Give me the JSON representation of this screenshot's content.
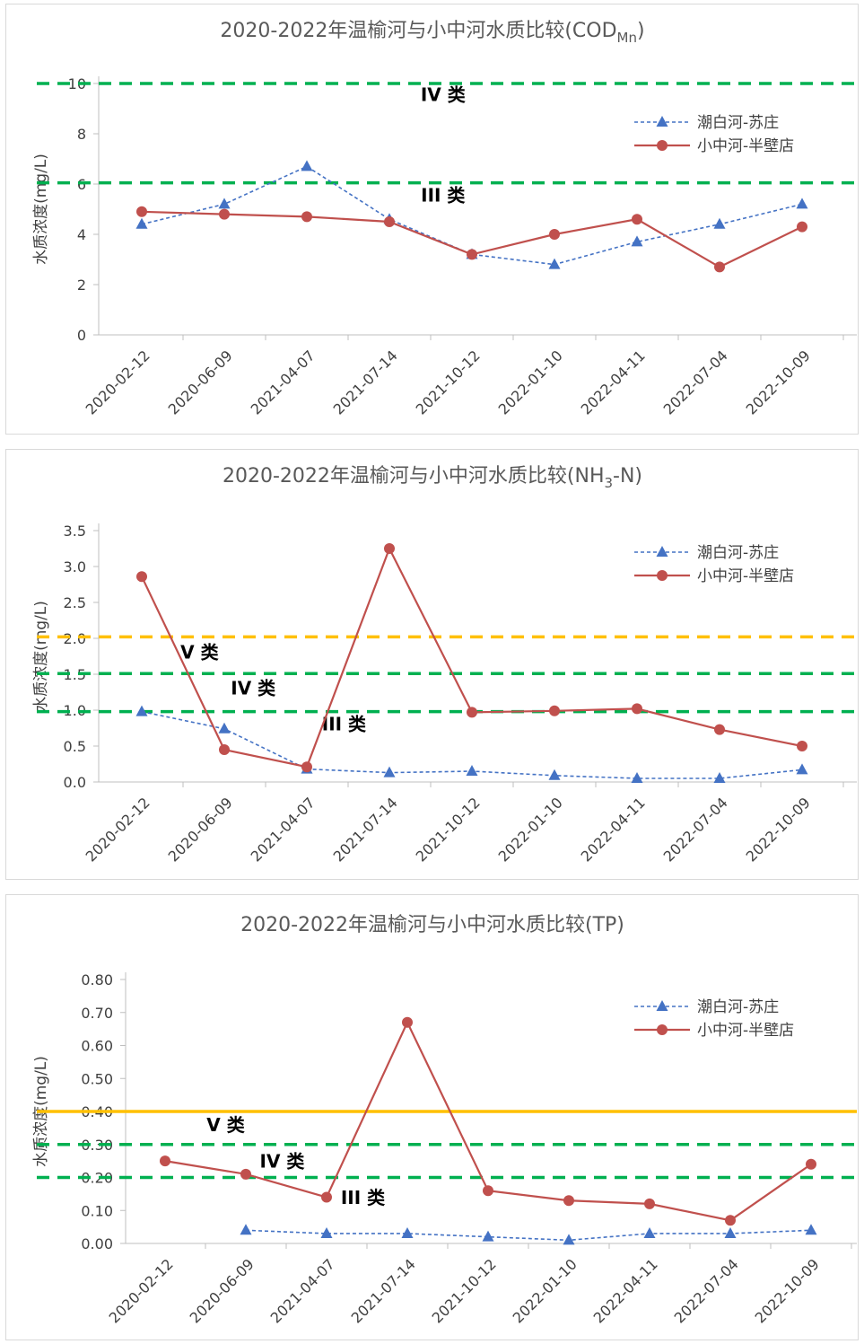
{
  "chart_data": [
    {
      "type": "line",
      "title": "2020-2022年温榆河与小中河水质比较(COD",
      "title_sub": "Mn",
      "title_end": ")",
      "ylabel": "水质浓度(mg/L)",
      "ylim": [
        0,
        10
      ],
      "yticks": [
        "0",
        "2",
        "4",
        "6",
        "8",
        "10"
      ],
      "categories": [
        "2020-02-12",
        "2020-06-09",
        "2021-04-07",
        "2021-07-14",
        "2021-10-12",
        "2022-01-10",
        "2022-04-11",
        "2022-07-04",
        "2022-10-09"
      ],
      "series": [
        {
          "name": "潮白河-苏庄",
          "color": "#4472c4",
          "style": "dashed",
          "marker": "triangle",
          "values": [
            4.4,
            5.2,
            6.7,
            4.6,
            3.2,
            2.8,
            3.7,
            4.4,
            5.2
          ]
        },
        {
          "name": "小中河-半壁店",
          "color": "#c0504d",
          "style": "solid",
          "marker": "circle",
          "values": [
            4.9,
            4.8,
            4.7,
            4.5,
            3.2,
            4.0,
            4.6,
            2.7,
            4.3
          ]
        }
      ],
      "thresholds": [
        {
          "value": 10,
          "label": "IV 类",
          "color": "#00b050",
          "style": "dashed",
          "label_x": 4.15,
          "label_y": 9.3
        },
        {
          "value": 6.05,
          "label": "III 类",
          "color": "#00b050",
          "style": "dashed",
          "label_x": 4.15,
          "label_y": 5.3
        }
      ]
    },
    {
      "type": "line",
      "title": "2020-2022年温榆河与小中河水质比较(NH",
      "title_sub": "3",
      "title_end": "-N)",
      "ylabel": "水质浓度(mg/L)",
      "ylim": [
        0,
        3.5
      ],
      "yticks": [
        "0.0",
        "0.5",
        "1.0",
        "1.5",
        "2.0",
        "2.5",
        "3.0",
        "3.5"
      ],
      "categories": [
        "2020-02-12",
        "2020-06-09",
        "2021-04-07",
        "2021-07-14",
        "2021-10-12",
        "2022-01-10",
        "2022-04-11",
        "2022-07-04",
        "2022-10-09"
      ],
      "series": [
        {
          "name": "潮白河-苏庄",
          "color": "#4472c4",
          "style": "dashed",
          "marker": "triangle",
          "values": [
            0.98,
            0.74,
            0.18,
            0.13,
            0.15,
            0.09,
            0.05,
            0.05,
            0.17
          ]
        },
        {
          "name": "小中河-半壁店",
          "color": "#c0504d",
          "style": "solid",
          "marker": "circle",
          "values": [
            2.86,
            0.45,
            0.21,
            3.25,
            0.97,
            0.99,
            1.02,
            0.73,
            0.5
          ]
        }
      ],
      "thresholds": [
        {
          "value": 2.02,
          "label": "V 类",
          "color": "#ffc000",
          "style": "dashed",
          "label_x": 1.2,
          "label_y": 1.72
        },
        {
          "value": 1.51,
          "label": "IV 类",
          "color": "#00b050",
          "style": "dashed",
          "label_x": 1.85,
          "label_y": 1.22
        },
        {
          "value": 0.98,
          "label": "III 类",
          "color": "#00b050",
          "style": "dashed",
          "label_x": 2.95,
          "label_y": 0.72
        }
      ]
    },
    {
      "type": "line",
      "title": "2020-2022年温榆河与小中河水质比较(TP)",
      "title_sub": "",
      "title_end": "",
      "ylabel": "水质浓度(mg/L)",
      "ylim": [
        0,
        0.8
      ],
      "yticks": [
        "0.00",
        "0.10",
        "0.20",
        "0.30",
        "0.40",
        "0.50",
        "0.60",
        "0.70",
        "0.80"
      ],
      "categories": [
        "2020-02-12",
        "2020-06-09",
        "2021-04-07",
        "2021-07-14",
        "2021-10-12",
        "2022-01-10",
        "2022-04-11",
        "2022-07-04",
        "2022-10-09"
      ],
      "series": [
        {
          "name": "潮白河-苏庄",
          "color": "#4472c4",
          "style": "dashed",
          "marker": "triangle",
          "values": [
            null,
            0.04,
            0.03,
            0.03,
            0.02,
            0.01,
            0.03,
            0.03,
            0.04
          ]
        },
        {
          "name": "小中河-半壁店",
          "color": "#c0504d",
          "style": "solid",
          "marker": "circle",
          "values": [
            0.25,
            0.21,
            0.14,
            0.67,
            0.16,
            0.13,
            0.12,
            0.07,
            0.24
          ]
        }
      ],
      "thresholds": [
        {
          "value": 0.4,
          "label": "V 类",
          "color": "#ffc000",
          "style": "solid",
          "label_x": 1.25,
          "label_y": 0.34
        },
        {
          "value": 0.3,
          "label": "IV 类",
          "color": "#00b050",
          "style": "dashed",
          "label_x": 1.95,
          "label_y": 0.23
        },
        {
          "value": 0.2,
          "label": "III 类",
          "color": "#00b050",
          "style": "dashed",
          "label_x": 2.95,
          "label_y": 0.12
        }
      ]
    }
  ]
}
